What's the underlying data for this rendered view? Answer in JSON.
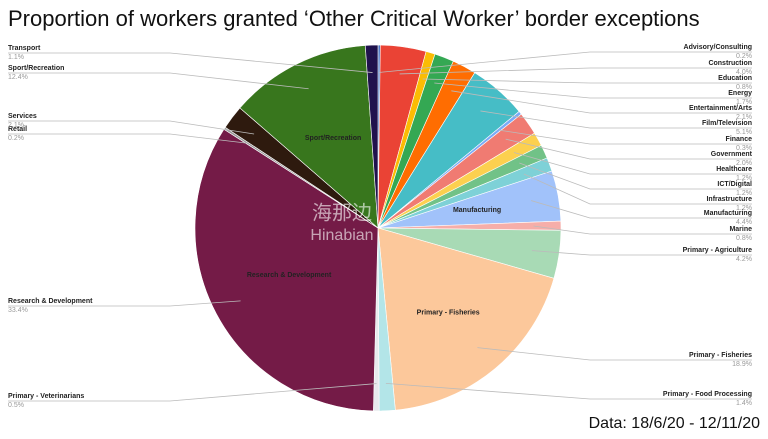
{
  "chart_data": {
    "type": "pie",
    "title": "Proportion of workers granted ‘Other Critical Worker’ border exceptions",
    "source": "Data: 18/6/20 - 12/11/20",
    "watermark": [
      "海那边",
      "Hinabian"
    ],
    "categories": [
      "Advisory/Consulting",
      "Construction",
      "Education",
      "Energy",
      "Entertainment/Arts",
      "Film/Television",
      "Finance",
      "Government",
      "Healthcare",
      "ICT/Digital",
      "Infrastructure",
      "Manufacturing",
      "Marine",
      "Primary - Agriculture",
      "Primary - Fisheries",
      "Primary - Food Processing",
      "Primary - Veterinarians",
      "Research & Development",
      "Retail",
      "Services",
      "Sport/Recreation",
      "Transport"
    ],
    "values": [
      0.2,
      4.0,
      0.8,
      1.7,
      2.1,
      5.1,
      0.3,
      2.0,
      1.2,
      1.2,
      1.2,
      4.4,
      0.8,
      4.2,
      18.9,
      1.4,
      0.5,
      33.4,
      0.2,
      2.1,
      12.4,
      1.1
    ],
    "value_labels": [
      "0.2%",
      "4.0%",
      "0.8%",
      "1.7%",
      "2.1%",
      "5.1%",
      "0.3%",
      "2.0%",
      "1.2%",
      "1.2%",
      "1.2%",
      "4.4%",
      "0.8%",
      "4.2%",
      "18.9%",
      "1.4%",
      "0.5%",
      "33.4%",
      "0.2%",
      "2.1%",
      "12.4%",
      "1.1%"
    ],
    "colors": [
      "#4472c4",
      "#ea4335",
      "#fbbc04",
      "#34a853",
      "#ff6d01",
      "#46bdc6",
      "#7baaf7",
      "#f07b72",
      "#fcd04f",
      "#71c287",
      "#7ed1d7",
      "#a1c2fa",
      "#f6aea9",
      "#a8dab5",
      "#fcc89b",
      "#b3e5e8",
      "#e8eaed",
      "#741b47",
      "#999999",
      "#2e1a0e",
      "#38761d",
      "#20124d"
    ]
  }
}
